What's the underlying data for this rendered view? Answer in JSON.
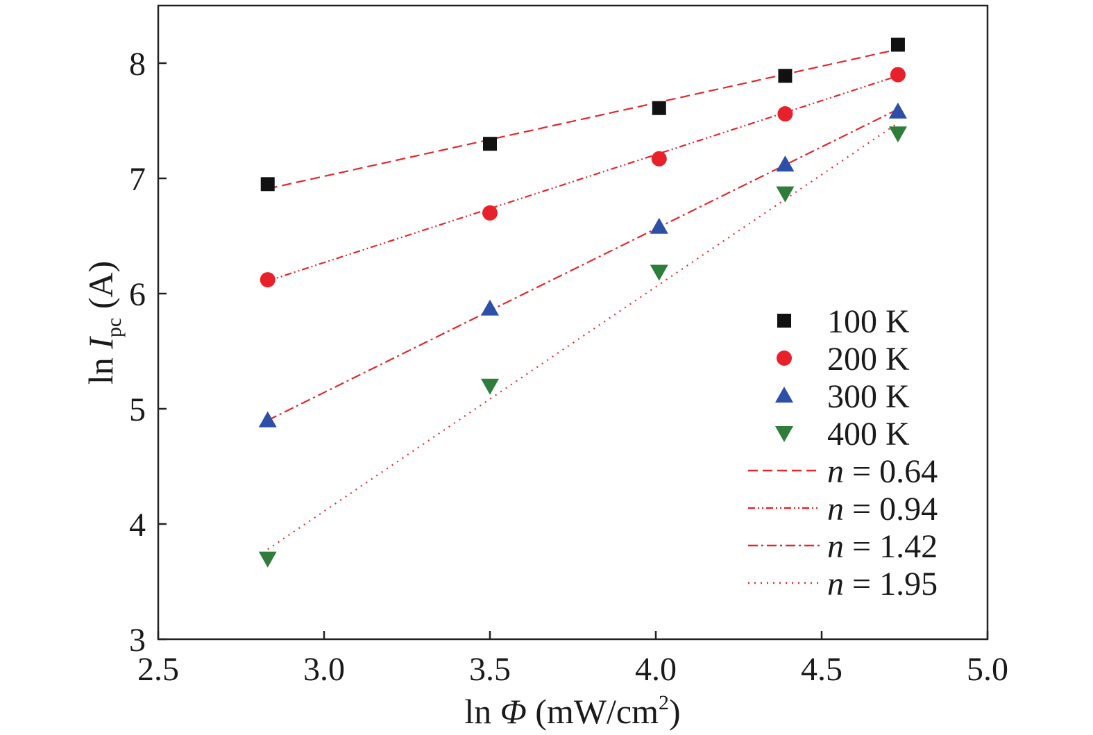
{
  "chart_data": {
    "type": "scatter",
    "title": "",
    "xlabel": {
      "prefix": "ln ",
      "symbol": "Φ",
      "unit_open": " (mW/cm",
      "unit_sup": "2",
      "unit_close": ")"
    },
    "ylabel": {
      "prefix": "ln ",
      "symbol": "I",
      "subscript": "pc",
      "suffix": " (A)"
    },
    "xlim": [
      2.5,
      5.0
    ],
    "ylim": [
      3,
      8.5
    ],
    "xticks": [
      "2.5",
      "3.0",
      "3.5",
      "4.0",
      "4.5",
      "5.0"
    ],
    "yticks": [
      "3",
      "4",
      "5",
      "6",
      "7",
      "8"
    ],
    "x": [
      2.83,
      3.5,
      4.01,
      4.39,
      4.73
    ],
    "series": [
      {
        "name": "100 K",
        "marker": "square",
        "color": "#111111",
        "values": [
          6.95,
          7.3,
          7.61,
          7.89,
          8.16
        ]
      },
      {
        "name": "200 K",
        "marker": "circle",
        "color": "#e8202a",
        "values": [
          6.12,
          6.7,
          7.17,
          7.56,
          7.9
        ]
      },
      {
        "name": "300 K",
        "marker": "triangle-up",
        "color": "#2d4fa8",
        "values": [
          4.9,
          5.87,
          6.58,
          7.12,
          7.58
        ]
      },
      {
        "name": "400 K",
        "marker": "triangle-down",
        "color": "#2e7d3a",
        "values": [
          3.7,
          5.2,
          6.19,
          6.87,
          7.39
        ]
      }
    ],
    "fits": [
      {
        "label_var": "n",
        "label_value": " = 0.64",
        "dash": "14,7",
        "x": [
          2.83,
          4.73
        ],
        "y": [
          6.91,
          8.12
        ]
      },
      {
        "label_var": "n",
        "label_value": " = 0.94",
        "dash": "10,4,2,4,2,4",
        "x": [
          2.83,
          4.73
        ],
        "y": [
          6.11,
          7.89
        ]
      },
      {
        "label_var": "n",
        "label_value": " = 1.42",
        "dash": "14,5,3,5",
        "x": [
          2.83,
          4.73
        ],
        "y": [
          4.9,
          7.6
        ]
      },
      {
        "label_var": "n",
        "label_value": " = 1.95",
        "dash": "2,7",
        "x": [
          2.83,
          4.73
        ],
        "y": [
          3.78,
          7.48
        ]
      }
    ],
    "fit_color": "#e3262d",
    "legend_position": "lower-right",
    "grid": false
  }
}
